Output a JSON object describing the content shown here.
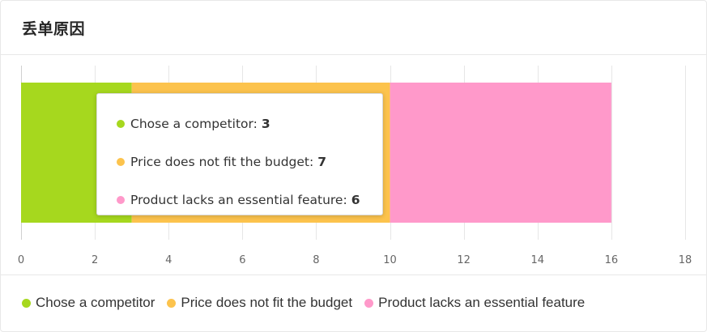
{
  "header": {
    "title": "丢单原因"
  },
  "chart_data": {
    "type": "bar",
    "orientation": "horizontal",
    "stacked": true,
    "categories": [
      ""
    ],
    "series": [
      {
        "name": "Chose a competitor",
        "values": [
          3
        ],
        "color": "#a6d81e"
      },
      {
        "name": "Price does not fit the budget",
        "values": [
          7
        ],
        "color": "#fcc34d"
      },
      {
        "name": "Product lacks an essential feature",
        "values": [
          6
        ],
        "color": "#ff99ca"
      }
    ],
    "xlim": [
      0,
      18
    ],
    "xticks": [
      0,
      2,
      4,
      6,
      8,
      10,
      12,
      14,
      16,
      18
    ],
    "grid": true,
    "legend": "bottom-left",
    "tooltip": {
      "items": [
        {
          "label": "Chose a competitor:",
          "value": "3",
          "color": "#a6d81e"
        },
        {
          "label": "Price does not fit the budget:",
          "value": "7",
          "color": "#fcc34d"
        },
        {
          "label": "Product lacks an essential feature:",
          "value": "6",
          "color": "#ff99ca"
        }
      ]
    }
  }
}
